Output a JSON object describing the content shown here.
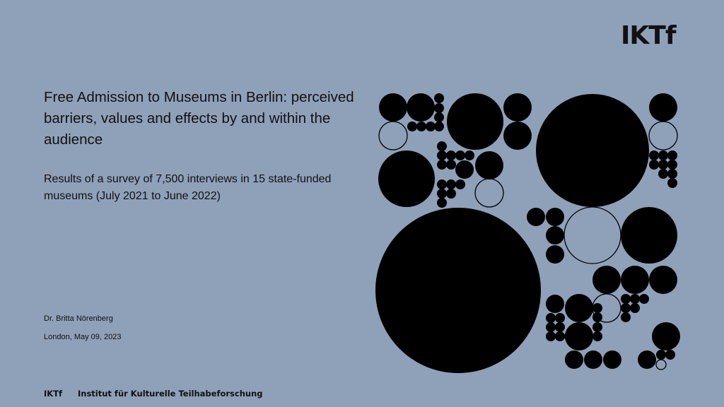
{
  "colors": {
    "background": "#8fa0b9",
    "ink": "#000000"
  },
  "brand": {
    "logo_text": "IKTf"
  },
  "slide": {
    "title": "Free Admission to Museums in Berlin: perceived barriers, values and effects by and within the audience",
    "subtitle": "Results of a survey of 7,500 interviews in 15 state-funded museums  (July 2021 to June 2022)",
    "author": "Dr. Britta Nörenberg",
    "date": "London, May 09, 2023"
  },
  "footer": {
    "logo_text": "IKTf",
    "organization": "Institut für Kulturelle Teilhabeforschung"
  },
  "graphic": {
    "description_icon": "circle-pattern-icon"
  }
}
